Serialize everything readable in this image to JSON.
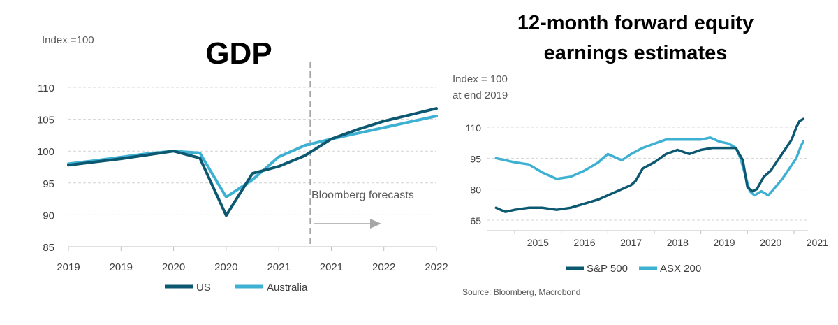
{
  "left_chart": {
    "title": "GDP",
    "unit_note": "Index =100",
    "forecast_label": "Bloomberg forecasts"
  },
  "right_chart": {
    "title_line1": "12-month forward equity",
    "title_line2": "earnings estimates",
    "unit_note_line1": "Index = 100",
    "unit_note_line2": "at end 2019"
  },
  "source": "Source: Bloomberg, Macrobond",
  "colors": {
    "us": "#0c5870",
    "australia": "#3eb1d3",
    "forecast_line": "#a6a6a6"
  },
  "chart_data": [
    {
      "type": "line",
      "title": "GDP",
      "ylabel": "Index =100",
      "ylim": [
        85,
        110
      ],
      "yticks": [
        110,
        105,
        100,
        95,
        90,
        85
      ],
      "x_tick_labels": [
        "2019",
        "2019",
        "2020",
        "2020",
        "2021",
        "2021",
        "2022",
        "2022"
      ],
      "x_range": [
        0,
        7
      ],
      "forecast_start_x": 4.6,
      "grid": true,
      "legend_position": "bottom",
      "series": [
        {
          "name": "US",
          "color_key": "us",
          "x": [
            0,
            1,
            2,
            2.5,
            3,
            3.5,
            4,
            4.5,
            5,
            5.5,
            6,
            6.5,
            7
          ],
          "y": [
            97.8,
            98.8,
            100.0,
            98.9,
            89.9,
            96.5,
            97.6,
            99.3,
            101.9,
            103.4,
            104.7,
            105.7,
            106.7
          ]
        },
        {
          "name": "Australia",
          "color_key": "australia",
          "x": [
            0,
            0.5,
            1.5,
            2,
            2.5,
            3,
            3.5,
            4,
            4.5,
            5,
            5.5,
            6,
            6.5,
            7
          ],
          "y": [
            98.0,
            98.5,
            99.6,
            100.0,
            99.7,
            92.8,
            95.5,
            99.1,
            100.9,
            101.9,
            102.8,
            103.7,
            104.6,
            105.5
          ]
        }
      ]
    },
    {
      "type": "line",
      "title": "12-month forward equity earnings estimates",
      "ylabel": "Index = 100 at end 2019",
      "ylim": [
        60,
        115
      ],
      "yticks": [
        110,
        95,
        80,
        65
      ],
      "x_tick_labels": [
        "2015",
        "2016",
        "2017",
        "2018",
        "2019",
        "2020",
        "2021"
      ],
      "xlim": [
        2014.4,
        2021.3
      ],
      "grid": true,
      "legend_position": "bottom",
      "series": [
        {
          "name": "S&P 500",
          "color_key": "us",
          "x": [
            2014.6,
            2014.8,
            2015.0,
            2015.3,
            2015.6,
            2015.9,
            2016.2,
            2016.5,
            2016.8,
            2017.0,
            2017.3,
            2017.5,
            2017.6,
            2017.75,
            2018.0,
            2018.25,
            2018.5,
            2018.75,
            2019.0,
            2019.25,
            2019.5,
            2019.75,
            2019.8,
            2019.9,
            2020.0,
            2020.1,
            2020.2,
            2020.35,
            2020.5,
            2020.65,
            2020.8,
            2020.95,
            2021.05,
            2021.12,
            2021.2
          ],
          "y": [
            71,
            69,
            70,
            71,
            71,
            70,
            71,
            73,
            75,
            77,
            80,
            82,
            84,
            90,
            93,
            97,
            99,
            97,
            99,
            100,
            100,
            100,
            98,
            94,
            81,
            79,
            80,
            86,
            89,
            94,
            99,
            104,
            110,
            113,
            114
          ]
        },
        {
          "name": "ASX 200",
          "color_key": "australia",
          "x": [
            2014.6,
            2014.8,
            2015.0,
            2015.3,
            2015.6,
            2015.9,
            2016.2,
            2016.5,
            2016.8,
            2017.0,
            2017.3,
            2017.5,
            2017.75,
            2018.0,
            2018.25,
            2018.5,
            2018.75,
            2019.0,
            2019.2,
            2019.4,
            2019.6,
            2019.75,
            2019.85,
            2019.95,
            2020.05,
            2020.15,
            2020.3,
            2020.45,
            2020.6,
            2020.75,
            2020.9,
            2021.05,
            2021.15,
            2021.2
          ],
          "y": [
            95,
            94,
            93,
            92,
            88,
            85,
            86,
            89,
            93,
            97,
            94,
            97,
            100,
            102,
            104,
            104,
            104,
            104,
            105,
            103,
            102,
            100,
            95,
            87,
            79,
            77,
            79,
            77,
            81,
            85,
            90,
            95,
            101,
            103
          ]
        }
      ]
    }
  ]
}
